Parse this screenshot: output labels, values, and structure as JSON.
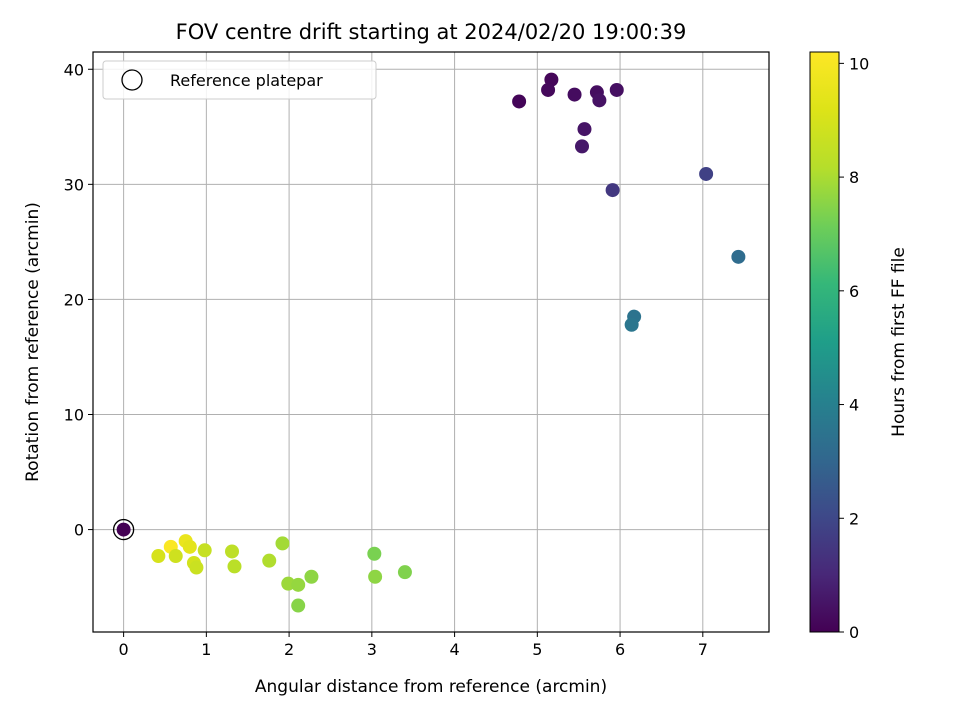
{
  "chart_data": {
    "type": "scatter",
    "title": "FOV centre drift starting at 2024/02/20 19:00:39",
    "xlabel": "Angular distance from reference (arcmin)",
    "ylabel": "Rotation from reference (arcmin)",
    "xlim": [
      -0.37,
      7.8
    ],
    "ylim": [
      -8.9,
      41.5
    ],
    "xticks": [
      0,
      1,
      2,
      3,
      4,
      5,
      6,
      7
    ],
    "yticks": [
      0,
      10,
      20,
      30,
      40
    ],
    "grid": true,
    "legend": {
      "placement": "top-left",
      "entries": [
        "Reference platepar"
      ]
    },
    "colorbar": {
      "label": "Hours from first FF file",
      "colormap": "viridis",
      "range": [
        0,
        10.2
      ],
      "ticks": [
        0,
        2,
        4,
        6,
        8,
        10
      ]
    },
    "reference_point": {
      "x": 0,
      "y": 0,
      "hours": 0.0
    },
    "points": [
      {
        "x": 4.78,
        "y": 37.2,
        "hours": 0.1
      },
      {
        "x": 5.17,
        "y": 39.1,
        "hours": 0.15
      },
      {
        "x": 5.13,
        "y": 38.2,
        "hours": 0.2
      },
      {
        "x": 5.45,
        "y": 37.8,
        "hours": 0.3
      },
      {
        "x": 5.72,
        "y": 38.0,
        "hours": 0.35
      },
      {
        "x": 5.96,
        "y": 38.2,
        "hours": 0.4
      },
      {
        "x": 5.75,
        "y": 37.3,
        "hours": 0.45
      },
      {
        "x": 5.57,
        "y": 34.8,
        "hours": 0.5
      },
      {
        "x": 5.54,
        "y": 33.3,
        "hours": 0.6
      },
      {
        "x": 5.91,
        "y": 29.5,
        "hours": 1.5
      },
      {
        "x": 7.04,
        "y": 30.9,
        "hours": 1.8
      },
      {
        "x": 7.43,
        "y": 23.7,
        "hours": 3.2
      },
      {
        "x": 6.17,
        "y": 18.5,
        "hours": 3.5
      },
      {
        "x": 6.14,
        "y": 17.8,
        "hours": 3.6
      },
      {
        "x": 0.0,
        "y": 0.0,
        "hours": 0.0
      },
      {
        "x": 0.57,
        "y": -1.5,
        "hours": 10.1
      },
      {
        "x": 0.75,
        "y": -1.0,
        "hours": 9.6
      },
      {
        "x": 0.8,
        "y": -1.5,
        "hours": 9.4
      },
      {
        "x": 0.42,
        "y": -2.3,
        "hours": 9.0
      },
      {
        "x": 0.63,
        "y": -2.3,
        "hours": 8.8
      },
      {
        "x": 0.85,
        "y": -2.9,
        "hours": 8.9
      },
      {
        "x": 0.88,
        "y": -3.3,
        "hours": 8.7
      },
      {
        "x": 0.98,
        "y": -1.8,
        "hours": 8.6
      },
      {
        "x": 1.31,
        "y": -1.9,
        "hours": 8.4
      },
      {
        "x": 1.34,
        "y": -3.2,
        "hours": 8.3
      },
      {
        "x": 1.76,
        "y": -2.7,
        "hours": 8.1
      },
      {
        "x": 1.92,
        "y": -1.2,
        "hours": 7.9
      },
      {
        "x": 1.99,
        "y": -4.7,
        "hours": 7.8
      },
      {
        "x": 2.11,
        "y": -4.8,
        "hours": 7.7
      },
      {
        "x": 2.27,
        "y": -4.1,
        "hours": 7.6
      },
      {
        "x": 2.11,
        "y": -6.6,
        "hours": 7.5
      },
      {
        "x": 3.03,
        "y": -2.1,
        "hours": 7.3
      },
      {
        "x": 3.04,
        "y": -4.1,
        "hours": 7.6
      },
      {
        "x": 3.4,
        "y": -3.7,
        "hours": 7.4
      }
    ]
  }
}
